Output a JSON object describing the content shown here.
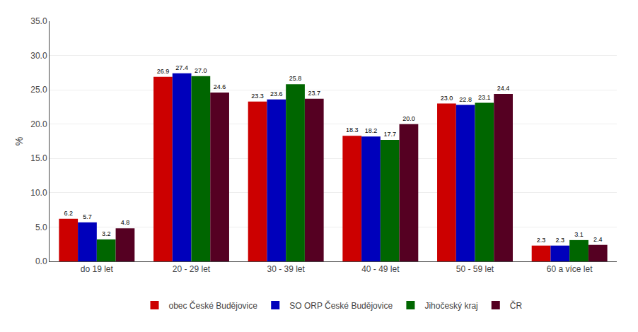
{
  "chart_data": {
    "type": "bar",
    "categories": [
      "do 19 let",
      "20 - 29 let",
      "30 - 39 let",
      "40 - 49 let",
      "50 - 59 let",
      "60 a více let"
    ],
    "series": [
      {
        "name": "obec České Budějovice",
        "color": "#cc0000",
        "values": [
          6.2,
          26.9,
          23.3,
          18.3,
          23.0,
          2.3
        ],
        "value_labels": [
          "6.2",
          "26.9",
          "23.3",
          "18.3",
          "23.0",
          "2.3"
        ]
      },
      {
        "name": "SO ORP České Budějovice",
        "color": "#0000bb",
        "values": [
          5.7,
          27.4,
          23.6,
          18.2,
          22.8,
          2.3
        ],
        "value_labels": [
          "5.7",
          "27.4",
          "23.6",
          "18.2",
          "22.8",
          "2.3"
        ]
      },
      {
        "name": "Jihočeský kraj",
        "color": "#006600",
        "values": [
          3.2,
          27.0,
          25.8,
          17.7,
          23.1,
          3.1
        ],
        "value_labels": [
          "3.2",
          "27.0",
          "25.8",
          "17.7",
          "23.1",
          "3.1"
        ]
      },
      {
        "name": "ČR",
        "color": "#550022",
        "values": [
          4.8,
          24.6,
          23.7,
          20.0,
          24.4,
          2.4
        ],
        "value_labels": [
          "4.8",
          "24.6",
          "23.7",
          "20.0",
          "24.4",
          "2.4"
        ]
      }
    ],
    "ylabel": "%",
    "ylim": [
      0,
      35
    ],
    "yticks": [
      {
        "value": 0,
        "label": "0.0"
      },
      {
        "value": 5,
        "label": "5.0"
      },
      {
        "value": 10,
        "label": "10.0"
      },
      {
        "value": 15,
        "label": "15.0"
      },
      {
        "value": 20,
        "label": "20.0"
      },
      {
        "value": 25,
        "label": "25.0"
      },
      {
        "value": 30,
        "label": "30.0"
      },
      {
        "value": 35,
        "label": "35.0"
      }
    ],
    "grid": true,
    "legend": "bottom",
    "data_labels": true
  }
}
